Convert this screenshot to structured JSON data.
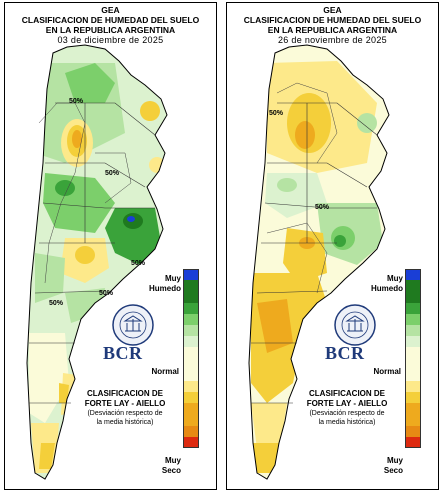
{
  "colors": {
    "scale": [
      "#1a3ed6",
      "#1f7a1f",
      "#3aa33a",
      "#7ccf6b",
      "#b5e3a3",
      "#dcf2cf",
      "#fbfbd9",
      "#fde98a",
      "#f4cf3a",
      "#eeaa1e",
      "#e78a14",
      "#dd2a10"
    ]
  },
  "panels": [
    {
      "org": "GEA",
      "title_line1": "CLASIFICACION DE HUMEDAD DEL SUELO",
      "title_line2": "EN LA REPUBLICA ARGENTINA",
      "date": "03 de diciembre de 2025",
      "contour_labels": [
        "50%",
        "50%",
        "50%",
        "50%",
        "50%"
      ],
      "legend_top": "Muy\nHumedo",
      "legend_mid": "Normal",
      "legend_bottom": "Muy\nSeco",
      "brand": "BCR",
      "method_line1": "CLASIFICACION DE",
      "method_line2": "FORTE LAY - AIELLO",
      "method_line3": "(Desviación respecto de",
      "method_line4": "la media histórica)"
    },
    {
      "org": "GEA",
      "title_line1": "CLASIFICACION DE HUMEDAD DEL SUELO",
      "title_line2": "EN LA REPUBLICA ARGENTINA",
      "date": "26 de noviembre de 2025",
      "contour_labels": [
        "50%",
        "50%"
      ],
      "legend_top": "Muy\nHumedo",
      "legend_mid": "Normal",
      "legend_bottom": "Muy\nSeco",
      "brand": "BCR",
      "method_line1": "CLASIFICACION DE",
      "method_line2": "FORTE LAY - AIELLO",
      "method_line3": "(Desviación respecto de",
      "method_line4": "la media histórica)"
    }
  ]
}
